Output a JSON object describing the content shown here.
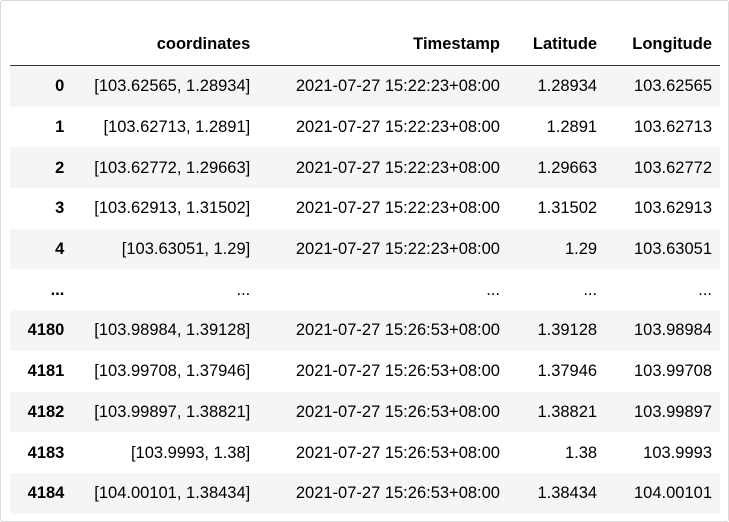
{
  "table": {
    "columns": [
      "",
      "coordinates",
      "Timestamp",
      "Latitude",
      "Longitude"
    ],
    "rows": [
      {
        "index": "0",
        "coordinates": "[103.62565, 1.28934]",
        "timestamp": "2021-07-27 15:22:23+08:00",
        "latitude": "1.28934",
        "longitude": "103.62565"
      },
      {
        "index": "1",
        "coordinates": "[103.62713, 1.2891]",
        "timestamp": "2021-07-27 15:22:23+08:00",
        "latitude": "1.2891",
        "longitude": "103.62713"
      },
      {
        "index": "2",
        "coordinates": "[103.62772, 1.29663]",
        "timestamp": "2021-07-27 15:22:23+08:00",
        "latitude": "1.29663",
        "longitude": "103.62772"
      },
      {
        "index": "3",
        "coordinates": "[103.62913, 1.31502]",
        "timestamp": "2021-07-27 15:22:23+08:00",
        "latitude": "1.31502",
        "longitude": "103.62913"
      },
      {
        "index": "4",
        "coordinates": "[103.63051, 1.29]",
        "timestamp": "2021-07-27 15:22:23+08:00",
        "latitude": "1.29",
        "longitude": "103.63051"
      },
      {
        "index": "...",
        "coordinates": "...",
        "timestamp": "...",
        "latitude": "...",
        "longitude": "..."
      },
      {
        "index": "4180",
        "coordinates": "[103.98984, 1.39128]",
        "timestamp": "2021-07-27 15:26:53+08:00",
        "latitude": "1.39128",
        "longitude": "103.98984"
      },
      {
        "index": "4181",
        "coordinates": "[103.99708, 1.37946]",
        "timestamp": "2021-07-27 15:26:53+08:00",
        "latitude": "1.37946",
        "longitude": "103.99708"
      },
      {
        "index": "4182",
        "coordinates": "[103.99897, 1.38821]",
        "timestamp": "2021-07-27 15:26:53+08:00",
        "latitude": "1.38821",
        "longitude": "103.99897"
      },
      {
        "index": "4183",
        "coordinates": "[103.9993, 1.38]",
        "timestamp": "2021-07-27 15:26:53+08:00",
        "latitude": "1.38",
        "longitude": "103.9993"
      },
      {
        "index": "4184",
        "coordinates": "[104.00101, 1.38434]",
        "timestamp": "2021-07-27 15:26:53+08:00",
        "latitude": "1.38434",
        "longitude": "104.00101"
      }
    ]
  },
  "colors": {
    "stripe": "#f5f5f5",
    "header_rule": "#333333"
  }
}
